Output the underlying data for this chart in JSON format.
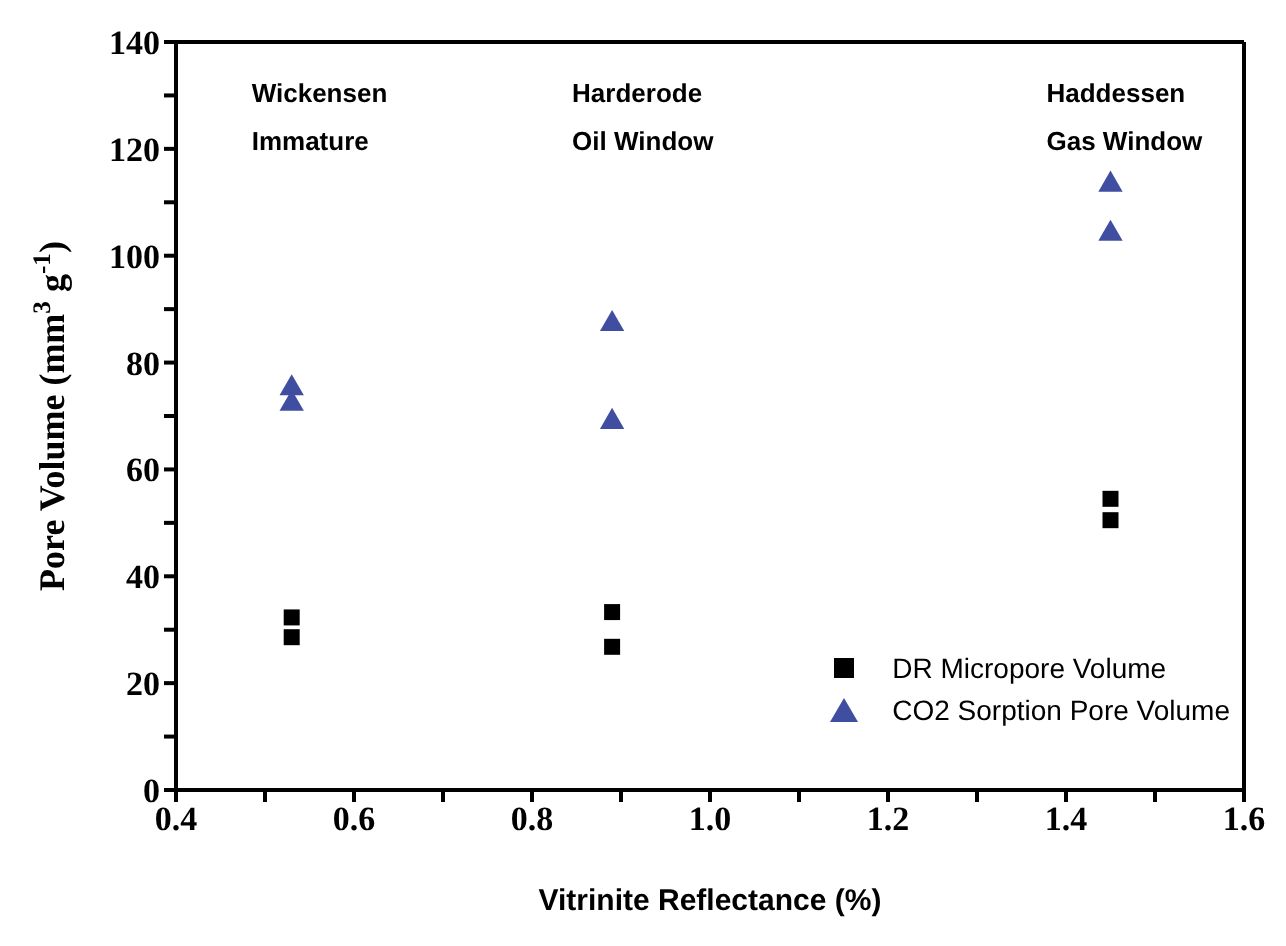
{
  "chart_data": {
    "type": "scatter",
    "xlabel": "Vitrinite Reflectance (%)",
    "ylabel": "Pore Volume (mm$^{3}$ g$^{-1}$)",
    "x": [
      0.53,
      0.53,
      0.89,
      0.89,
      1.45,
      1.45
    ],
    "series": [
      {
        "name": "DR Micropore Volume",
        "color": "#000000",
        "marker": "square",
        "values": [
          32.3,
          28.6,
          33.3,
          26.8,
          54.5,
          50.5
        ]
      },
      {
        "name": "CO2 Sorption Pore Volume",
        "color": "#3f4ea0",
        "marker": "triangle",
        "values": [
          75.2,
          72.3,
          87.2,
          68.9,
          113.3,
          104.1
        ]
      }
    ],
    "annotations": [
      "Wickensen\nImmature",
      "Harderode\nOil Window",
      "Haddessen\nGas Window"
    ],
    "xlim": [
      0.4,
      1.6
    ],
    "xticks": [
      0.4,
      {
        "value": 0.5,
        "label": null
      },
      0.6,
      {
        "value": 0.7,
        "label": null
      },
      0.8,
      {
        "value": 0.9,
        "label": null
      },
      {
        "value": 1.0,
        "label": "1.0"
      },
      {
        "value": 1.1,
        "label": null
      },
      1.2,
      {
        "value": 1.3,
        "label": null
      },
      1.4,
      {
        "value": 1.5,
        "label": null
      },
      1.6
    ],
    "ylim": [
      0,
      140
    ],
    "yticks": [
      0,
      {
        "value": 10,
        "label": null
      },
      20,
      {
        "value": 30,
        "label": null
      },
      40,
      {
        "value": 50,
        "label": null
      },
      60,
      {
        "value": 70,
        "label": null
      },
      80,
      {
        "value": 90,
        "label": null
      },
      100,
      {
        "value": 110,
        "label": null
      },
      120,
      {
        "value": 130,
        "label": null
      },
      140
    ],
    "legend": "bottom right",
    "grid": false
  }
}
